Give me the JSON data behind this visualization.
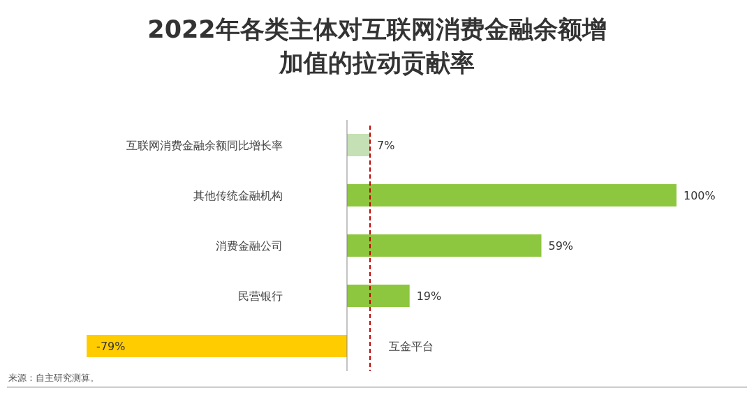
{
  "chart_data": {
    "type": "bar",
    "orientation": "horizontal",
    "title": "2022年各类主体对互联网消费金融余额增加值的拉动贡献率",
    "categories": [
      "互联网消费金融余额同比增长率",
      "其他传统金融机构",
      "消费金融公司",
      "民营银行",
      "互金平台"
    ],
    "values": [
      7,
      100,
      59,
      19,
      -79
    ],
    "colors": [
      "#c5e0b4",
      "#8dc63f",
      "#8dc63f",
      "#8dc63f",
      "#ffcc00"
    ],
    "value_labels": [
      "7%",
      "100%",
      "59%",
      "19%",
      "-79%"
    ],
    "ref_lines": [
      {
        "axis": "x",
        "value": 7,
        "color": "#c00000",
        "line_style": "dashed"
      }
    ],
    "annotations": [
      "来源：自主研究测算。"
    ]
  }
}
